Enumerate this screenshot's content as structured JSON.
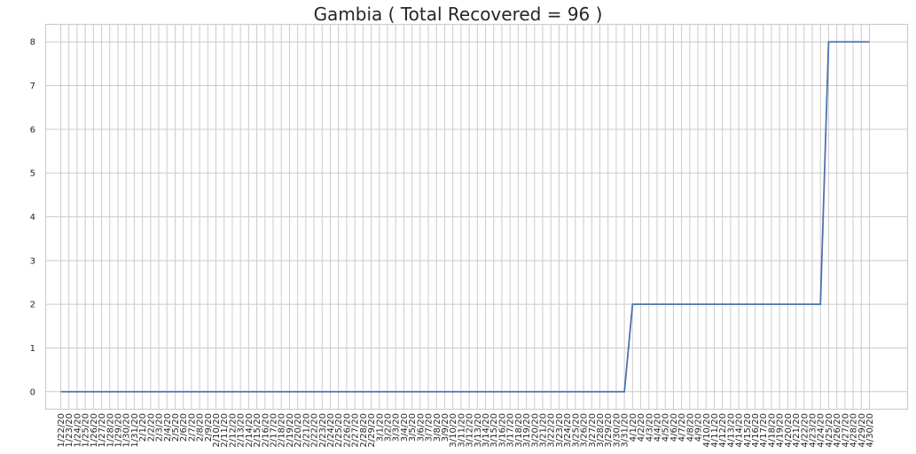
{
  "chart_data": {
    "type": "line",
    "title": "Gambia ( Total Recovered = 96 )",
    "xlabel": "",
    "ylabel": "",
    "ylim": [
      -0.4,
      8.4
    ],
    "yticks": [
      "0",
      "1",
      "2",
      "3",
      "4",
      "5",
      "6",
      "7",
      "8"
    ],
    "grid": true,
    "categories": [
      "1/22/20",
      "1/23/20",
      "1/24/20",
      "1/25/20",
      "1/26/20",
      "1/27/20",
      "1/28/20",
      "1/29/20",
      "1/30/20",
      "1/31/20",
      "2/1/20",
      "2/2/20",
      "2/3/20",
      "2/4/20",
      "2/5/20",
      "2/6/20",
      "2/7/20",
      "2/8/20",
      "2/9/20",
      "2/10/20",
      "2/11/20",
      "2/12/20",
      "2/13/20",
      "2/14/20",
      "2/15/20",
      "2/16/20",
      "2/17/20",
      "2/18/20",
      "2/19/20",
      "2/20/20",
      "2/21/20",
      "2/22/20",
      "2/23/20",
      "2/24/20",
      "2/25/20",
      "2/26/20",
      "2/27/20",
      "2/28/20",
      "2/29/20",
      "3/1/20",
      "3/2/20",
      "3/3/20",
      "3/4/20",
      "3/5/20",
      "3/6/20",
      "3/7/20",
      "3/8/20",
      "3/9/20",
      "3/10/20",
      "3/11/20",
      "3/12/20",
      "3/13/20",
      "3/14/20",
      "3/15/20",
      "3/16/20",
      "3/17/20",
      "3/18/20",
      "3/19/20",
      "3/20/20",
      "3/21/20",
      "3/22/20",
      "3/23/20",
      "3/24/20",
      "3/25/20",
      "3/26/20",
      "3/27/20",
      "3/28/20",
      "3/29/20",
      "3/30/20",
      "3/31/20",
      "4/1/20",
      "4/2/20",
      "4/3/20",
      "4/4/20",
      "4/5/20",
      "4/6/20",
      "4/7/20",
      "4/8/20",
      "4/9/20",
      "4/10/20",
      "4/11/20",
      "4/12/20",
      "4/13/20",
      "4/14/20",
      "4/15/20",
      "4/16/20",
      "4/17/20",
      "4/18/20",
      "4/19/20",
      "4/20/20",
      "4/21/20",
      "4/22/20",
      "4/23/20",
      "4/24/20",
      "4/25/20",
      "4/26/20",
      "4/27/20",
      "4/28/20",
      "4/29/20",
      "4/30/20"
    ],
    "series": [
      {
        "values": [
          0,
          0,
          0,
          0,
          0,
          0,
          0,
          0,
          0,
          0,
          0,
          0,
          0,
          0,
          0,
          0,
          0,
          0,
          0,
          0,
          0,
          0,
          0,
          0,
          0,
          0,
          0,
          0,
          0,
          0,
          0,
          0,
          0,
          0,
          0,
          0,
          0,
          0,
          0,
          0,
          0,
          0,
          0,
          0,
          0,
          0,
          0,
          0,
          0,
          0,
          0,
          0,
          0,
          0,
          0,
          0,
          0,
          0,
          0,
          0,
          0,
          0,
          0,
          0,
          0,
          0,
          0,
          0,
          0,
          0,
          2,
          2,
          2,
          2,
          2,
          2,
          2,
          2,
          2,
          2,
          2,
          2,
          2,
          2,
          2,
          2,
          2,
          2,
          2,
          2,
          2,
          2,
          2,
          2,
          8,
          8,
          8,
          8,
          8,
          8
        ],
        "color": "#4c72b0"
      }
    ]
  }
}
